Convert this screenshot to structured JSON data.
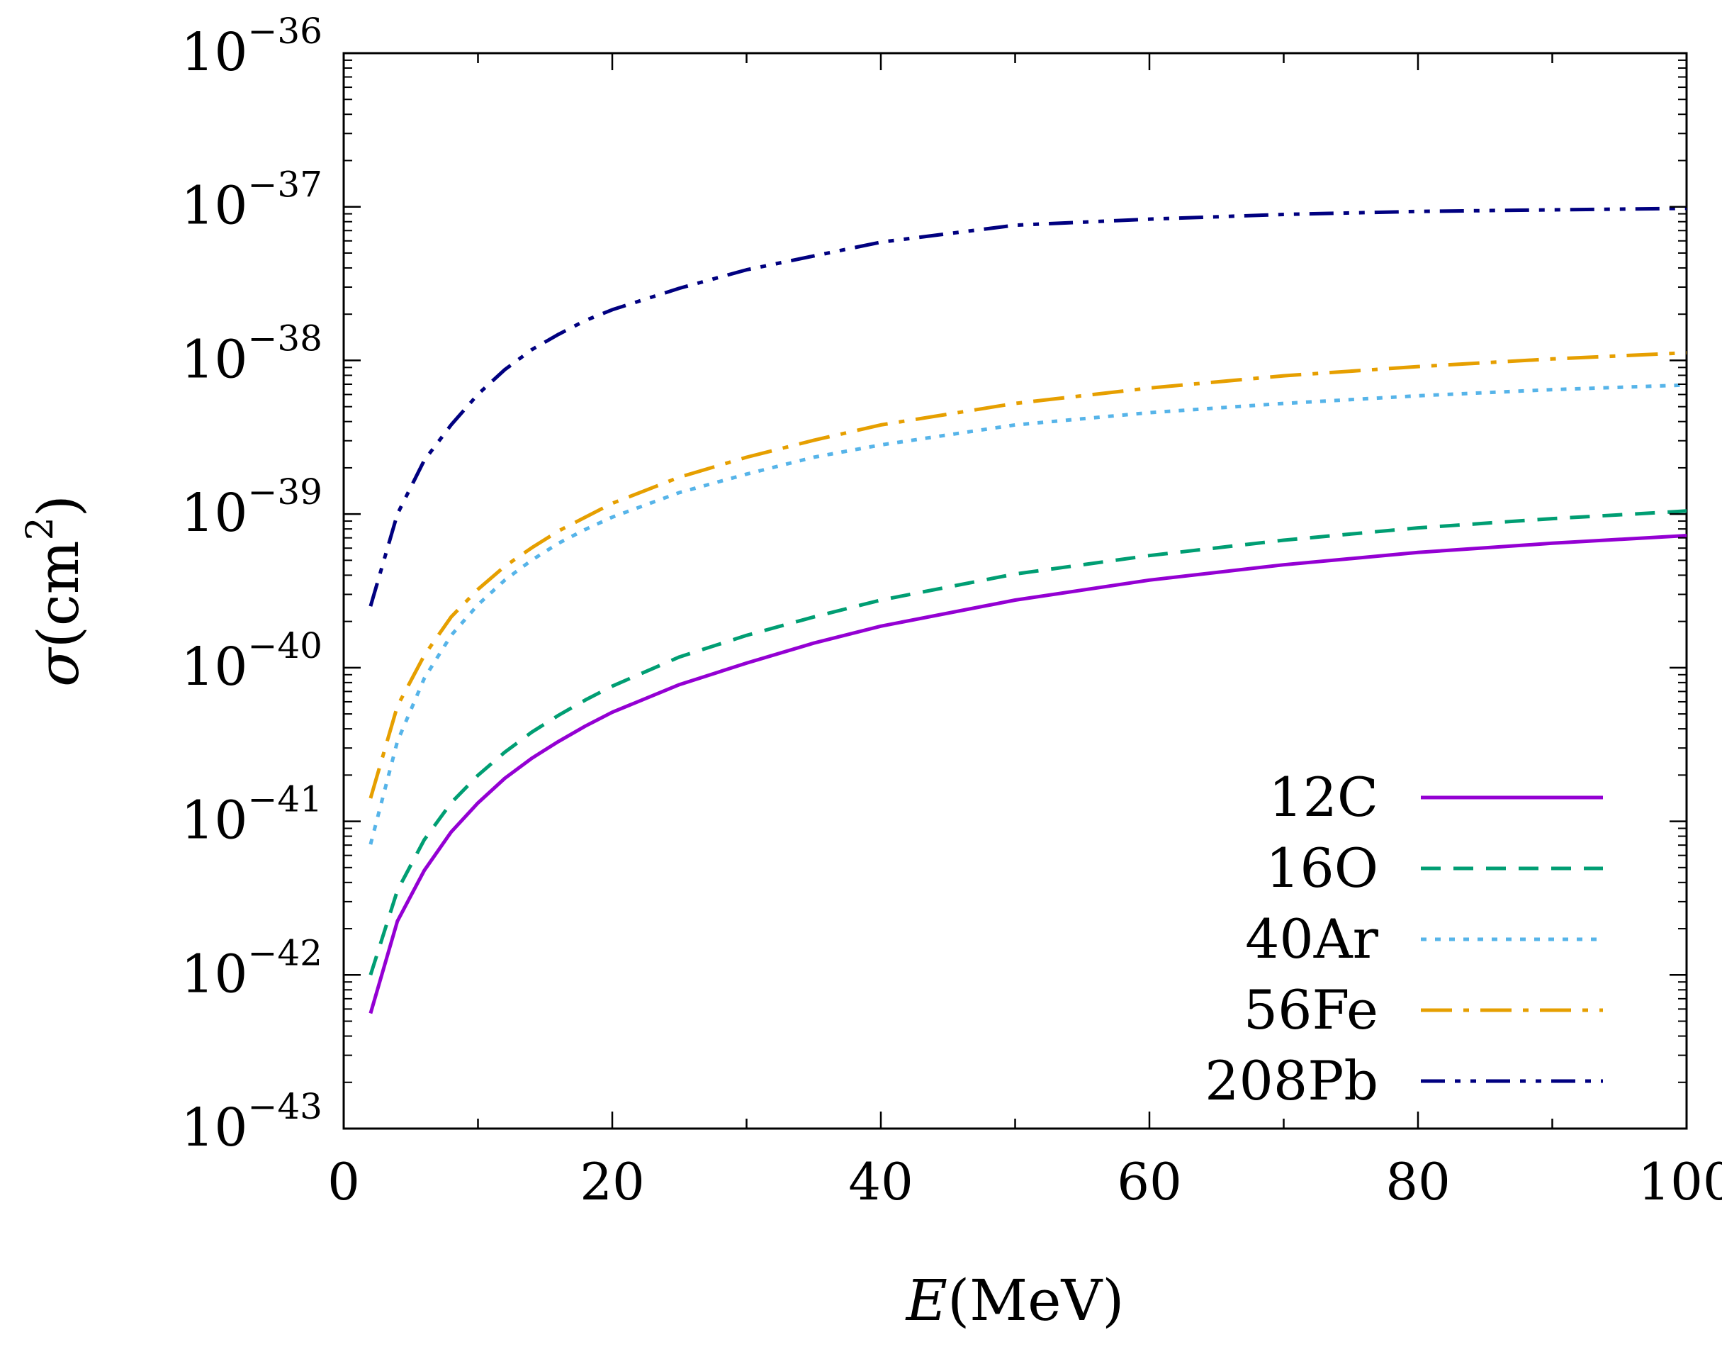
{
  "chart_data": {
    "type": "line",
    "title": "",
    "xlabel": {
      "var": "E",
      "unit": "(MeV)"
    },
    "ylabel": {
      "var": "σ",
      "unit": "(cm",
      "exp": "2",
      "close": ")"
    },
    "xlim": [
      0,
      100
    ],
    "ylim_log10": [
      -43,
      -36
    ],
    "yscale": "log",
    "x_ticks": [
      0,
      20,
      40,
      60,
      80,
      100
    ],
    "y_ticks": [
      {
        "base": "10",
        "exp": "−36",
        "log": -36
      },
      {
        "base": "10",
        "exp": "−37",
        "log": -37
      },
      {
        "base": "10",
        "exp": "−38",
        "log": -38
      },
      {
        "base": "10",
        "exp": "−39",
        "log": -39
      },
      {
        "base": "10",
        "exp": "−40",
        "log": -40
      },
      {
        "base": "10",
        "exp": "−41",
        "log": -41
      },
      {
        "base": "10",
        "exp": "−42",
        "log": -42
      },
      {
        "base": "10",
        "exp": "−43",
        "log": -43
      }
    ],
    "legend_position": "bottom-right",
    "series": [
      {
        "name": "12C",
        "color": "#9400d3",
        "dash": "solid",
        "x": [
          2,
          4,
          6,
          8,
          10,
          12,
          14,
          16,
          18,
          20,
          25,
          30,
          35,
          40,
          50,
          60,
          70,
          80,
          90,
          100
        ],
        "y_log10": [
          -42.25,
          -41.65,
          -41.32,
          -41.07,
          -40.88,
          -40.72,
          -40.59,
          -40.48,
          -40.38,
          -40.29,
          -40.11,
          -39.97,
          -39.84,
          -39.73,
          -39.56,
          -39.43,
          -39.33,
          -39.25,
          -39.19,
          -39.14
        ]
      },
      {
        "name": "16O",
        "color": "#009e73",
        "dash": "dashed",
        "x": [
          2,
          4,
          6,
          8,
          10,
          12,
          14,
          16,
          18,
          20,
          25,
          30,
          35,
          40,
          50,
          60,
          70,
          80,
          90,
          100
        ],
        "y_log10": [
          -42.0,
          -41.45,
          -41.12,
          -40.88,
          -40.7,
          -40.55,
          -40.42,
          -40.31,
          -40.21,
          -40.12,
          -39.93,
          -39.79,
          -39.67,
          -39.56,
          -39.39,
          -39.27,
          -39.17,
          -39.09,
          -39.03,
          -38.98
        ]
      },
      {
        "name": "40Ar",
        "color": "#56b4e9",
        "dash": "dotted",
        "x": [
          2,
          4,
          6,
          8,
          10,
          12,
          14,
          16,
          18,
          20,
          25,
          30,
          35,
          40,
          50,
          60,
          70,
          80,
          90,
          100
        ],
        "y_log10": [
          -41.15,
          -40.48,
          -40.07,
          -39.79,
          -39.59,
          -39.43,
          -39.3,
          -39.19,
          -39.1,
          -39.02,
          -38.86,
          -38.74,
          -38.63,
          -38.55,
          -38.42,
          -38.34,
          -38.28,
          -38.23,
          -38.19,
          -38.16
        ]
      },
      {
        "name": "56Fe",
        "color": "#e69f00",
        "dash": "dashdot",
        "x": [
          2,
          4,
          6,
          8,
          10,
          12,
          14,
          16,
          18,
          20,
          25,
          30,
          35,
          40,
          50,
          60,
          70,
          80,
          90,
          100
        ],
        "y_log10": [
          -40.85,
          -40.25,
          -39.92,
          -39.67,
          -39.49,
          -39.34,
          -39.22,
          -39.11,
          -39.02,
          -38.93,
          -38.76,
          -38.63,
          -38.52,
          -38.42,
          -38.28,
          -38.18,
          -38.1,
          -38.04,
          -37.99,
          -37.95
        ]
      },
      {
        "name": "208Pb",
        "color": "#000080",
        "dash": "dashdotdot",
        "x": [
          2,
          4,
          6,
          8,
          10,
          12,
          14,
          16,
          18,
          20,
          25,
          30,
          35,
          40,
          50,
          60,
          70,
          80,
          90,
          100
        ],
        "y_log10": [
          -39.6,
          -39.0,
          -38.65,
          -38.42,
          -38.22,
          -38.06,
          -37.93,
          -37.83,
          -37.74,
          -37.67,
          -37.53,
          -37.41,
          -37.32,
          -37.23,
          -37.12,
          -37.08,
          -37.05,
          -37.03,
          -37.02,
          -37.01
        ]
      }
    ]
  }
}
